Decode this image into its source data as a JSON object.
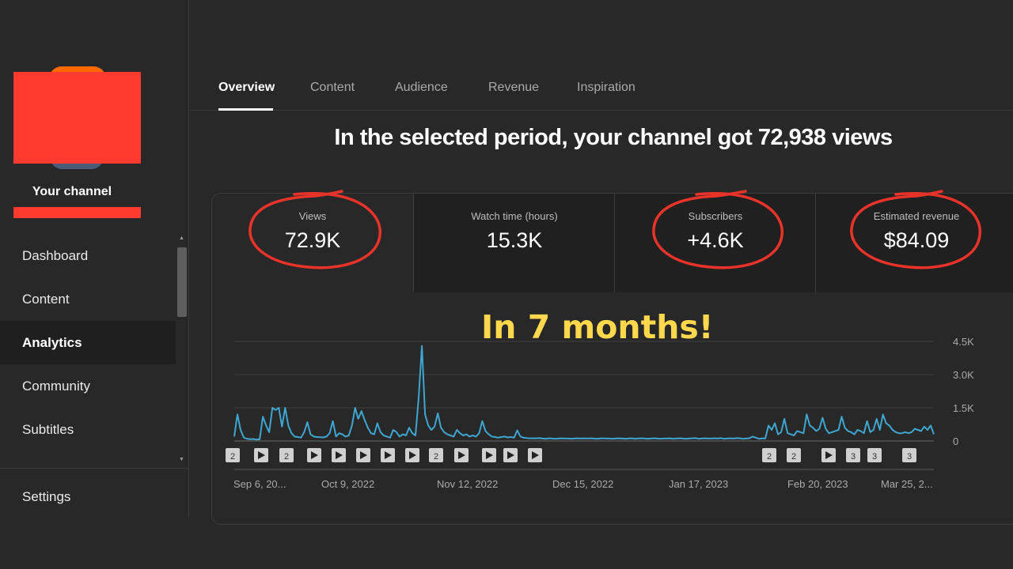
{
  "sidebar": {
    "channel_label": "Your channel",
    "items": [
      {
        "label": "Dashboard",
        "active": false
      },
      {
        "label": "Content",
        "active": false
      },
      {
        "label": "Analytics",
        "active": true
      },
      {
        "label": "Community",
        "active": false
      },
      {
        "label": "Subtitles",
        "active": false
      }
    ],
    "settings_label": "Settings"
  },
  "tabs": [
    {
      "label": "Overview",
      "active": true
    },
    {
      "label": "Content",
      "active": false
    },
    {
      "label": "Audience",
      "active": false
    },
    {
      "label": "Revenue",
      "active": false
    },
    {
      "label": "Inspiration",
      "active": false
    }
  ],
  "headline": "In the selected period, your channel got 72,938 views",
  "metrics": [
    {
      "label": "Views",
      "value": "72.9K",
      "circled": true
    },
    {
      "label": "Watch time (hours)",
      "value": "15.3K",
      "circled": false
    },
    {
      "label": "Subscribers",
      "value": "+4.6K",
      "circled": true
    },
    {
      "label": "Estimated revenue",
      "value": "$84.09",
      "circled": true
    }
  ],
  "callout": "In 7 months!",
  "colors": {
    "line": "#3ea6d0",
    "circle": "#e8332a",
    "callout": "#ffd84d"
  },
  "chart_data": {
    "type": "line",
    "x_tick_labels": [
      "Sep 6, 20...",
      "Oct 9, 2022",
      "Nov 12, 2022",
      "Dec 15, 2022",
      "Jan 17, 2023",
      "Feb 20, 2023",
      "Mar 25, 2..."
    ],
    "y_tick_labels": [
      "4.5K",
      "3.0K",
      "1.5K",
      "0"
    ],
    "ylim": [
      0,
      4500
    ],
    "grid": true,
    "series": [
      {
        "values": [
          200,
          1200,
          500,
          150,
          100,
          80,
          90,
          60,
          80,
          1100,
          700,
          400,
          1500,
          1400,
          1500,
          650,
          1500,
          700,
          350,
          200,
          180,
          150,
          400,
          850,
          300,
          200,
          180,
          170,
          160,
          200,
          350,
          900,
          200,
          350,
          300,
          200,
          250,
          700,
          1500,
          1000,
          1350,
          950,
          600,
          350,
          300,
          800,
          400,
          250,
          200,
          150,
          500,
          400,
          200,
          300,
          250,
          600,
          350,
          250,
          2000,
          4300,
          1200,
          700,
          500,
          650,
          1250,
          600,
          400,
          300,
          250,
          200,
          500,
          350,
          250,
          300,
          200,
          250,
          200,
          350,
          900,
          450,
          300,
          200,
          180,
          150,
          180,
          200,
          160,
          180,
          150,
          480,
          200,
          150,
          130,
          120,
          120,
          120,
          130,
          110,
          100,
          120,
          110,
          100,
          110,
          120,
          110,
          110,
          100,
          110,
          120,
          110,
          120,
          110,
          120,
          110,
          100,
          110,
          120,
          110,
          110,
          100,
          110,
          120,
          110,
          100,
          110,
          120,
          100,
          110,
          120,
          110,
          100,
          110,
          120,
          110,
          100,
          110,
          110,
          120,
          100,
          110,
          120,
          110,
          100,
          110,
          120,
          130,
          100,
          110,
          120,
          110,
          110,
          120,
          110,
          130,
          100,
          110,
          120,
          110,
          130,
          120,
          100,
          110,
          120,
          200,
          150,
          100,
          120,
          110,
          700,
          500,
          800,
          300,
          400,
          1000,
          350,
          300,
          250,
          450,
          400,
          350,
          1200,
          700,
          600,
          450,
          550,
          1050,
          550,
          350,
          400,
          450,
          500,
          1100,
          600,
          450,
          400,
          300,
          500,
          450,
          350,
          900,
          400,
          500,
          1000,
          500,
          1200,
          800,
          700,
          500,
          400,
          350,
          350,
          400,
          350,
          400,
          550,
          500,
          450,
          650,
          500,
          700,
          300
        ]
      }
    ],
    "markers": [
      "2",
      "play",
      "2",
      "play",
      "play",
      "play",
      "play",
      "play",
      "2",
      "play",
      "play",
      "play",
      "play",
      "2",
      "2",
      "play",
      "3",
      "3",
      "3"
    ]
  }
}
